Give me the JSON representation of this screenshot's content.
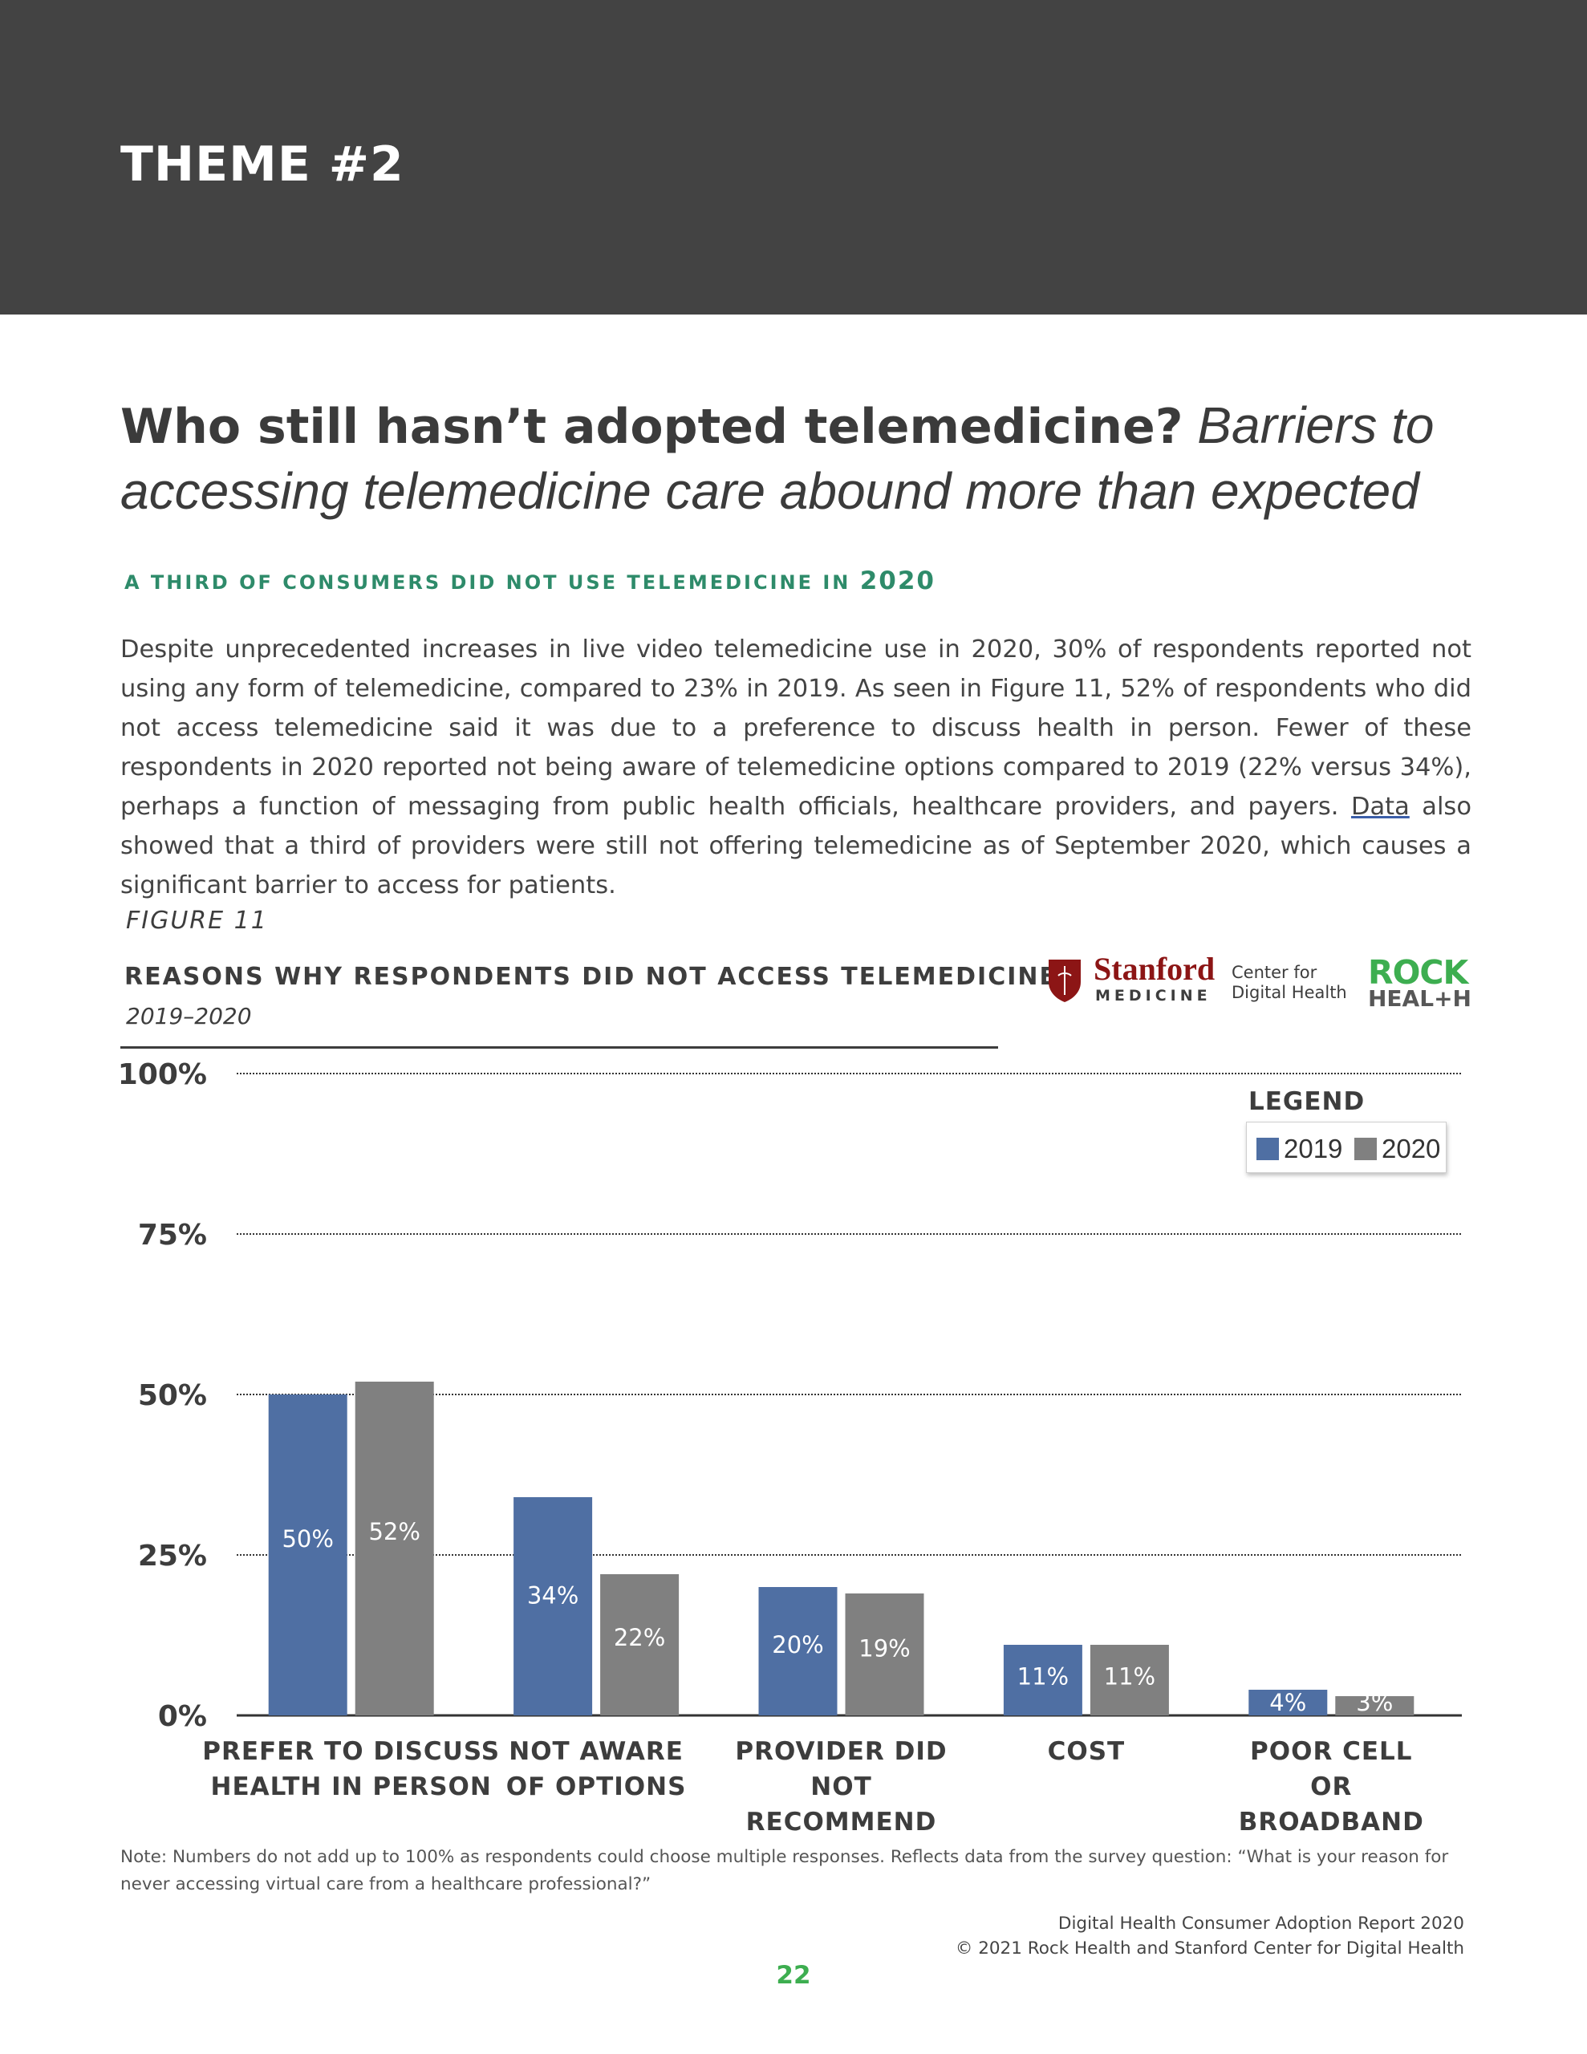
{
  "banner": {
    "title": "THEME #2"
  },
  "headline": {
    "bold": "Who still hasn’t adopted telemedicine?",
    "italic_line1": "Barriers to",
    "italic_line2": "accessing telemedicine care abound more than expected"
  },
  "subhead": {
    "text": "A THIRD OF CONSUMERS DID NOT USE TELEMEDICINE IN",
    "year": "2020"
  },
  "body": {
    "before_link": "Despite unprecedented increases in live video telemedicine use in 2020, 30% of respondents reported not using any form of telemedicine, compared to 23% in 2019. As seen in Figure 11, 52% of respondents who did not access telemedicine said it was due to a preference to discuss health in person. Fewer of these respondents in 2020 reported not being aware of telemedicine options compared to 2019 (22% versus 34%), perhaps a function of messaging from public health officials, healthcare providers, and payers.",
    "link": "Data",
    "after_link": "also showed that a third of providers were still not offering telemedicine as of September 2020, which causes a significant barrier to access for patients."
  },
  "figure": {
    "label": "FIGURE 11",
    "title": "REASONS WHY RESPONDENTS DID NOT ACCESS TELEMEDICINE",
    "subtitle": "2019–2020"
  },
  "logos": {
    "stanford": "Stanford",
    "medicine": "MEDICINE",
    "cdh_line1": "Center for",
    "cdh_line2": "Digital Health",
    "rock": "ROCK",
    "health": "HEAL+H"
  },
  "legend": {
    "title": "LEGEND"
  },
  "colors": {
    "s2019": "#4f6fa3",
    "s2020": "#808080",
    "green": "#2e8b6a",
    "banner": "#434343"
  },
  "chart_data": {
    "type": "bar",
    "title": "REASONS WHY RESPONDENTS DID NOT ACCESS TELEMEDICINE",
    "subtitle": "2019–2020",
    "categories": [
      [
        "PREFER TO DISCUSS",
        "HEALTH IN PERSON"
      ],
      [
        "NOT AWARE",
        "OF OPTIONS"
      ],
      [
        "PROVIDER DID",
        "NOT",
        "RECOMMEND"
      ],
      [
        "COST"
      ],
      [
        "POOR CELL",
        "OR",
        "BROADBAND"
      ]
    ],
    "series": [
      {
        "name": "2019",
        "values": [
          50,
          34,
          20,
          11,
          4
        ],
        "labels": [
          "50%",
          "34%",
          "20%",
          "11%",
          "4%"
        ]
      },
      {
        "name": "2020",
        "values": [
          52,
          22,
          19,
          11,
          3
        ],
        "labels": [
          "52%",
          "22%",
          "19%",
          "11%",
          "3%"
        ]
      }
    ],
    "yticks": [
      0,
      25,
      50,
      75,
      100
    ],
    "ytick_labels": [
      "0%",
      "25%",
      "50%",
      "75%",
      "100%"
    ],
    "ylim": [
      0,
      100
    ],
    "grid": true,
    "legend_position": "top-right"
  },
  "note": "Note: Numbers do not add up to 100% as respondents could choose multiple responses. Reflects data from the survey question: “What is your reason for never accessing virtual care from a healthcare professional?”",
  "footer": {
    "line1": "Digital Health Consumer Adoption Report 2020",
    "line2": "© 2021 Rock Health and Stanford Center for Digital Health"
  },
  "page_number": "22"
}
